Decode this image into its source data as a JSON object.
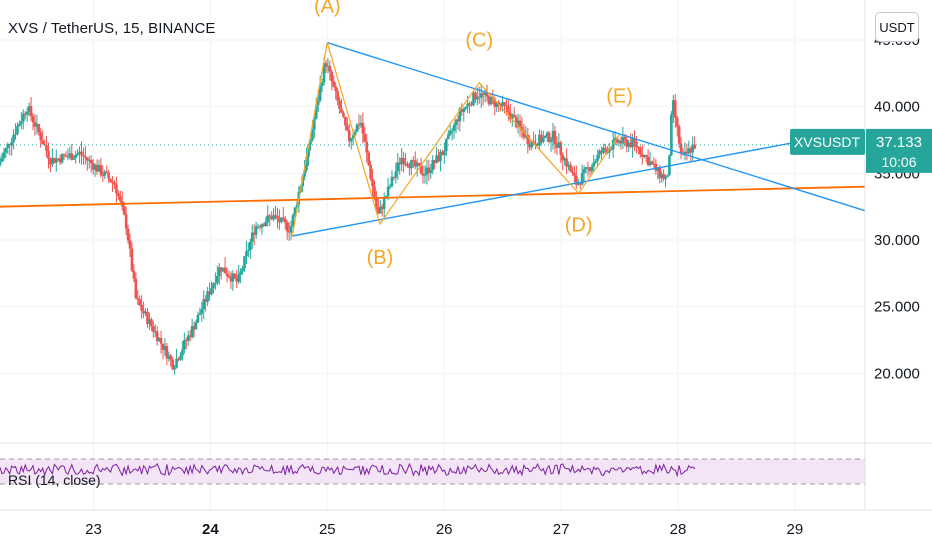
{
  "header": {
    "symbol_title": "XVS / TetherUS, 15, BINANCE",
    "currency_button": "USDT"
  },
  "price_tag": {
    "symbol": "XVSUSDT",
    "price": "37.133",
    "countdown": "10:06"
  },
  "rsi": {
    "label": "RSI (14, close)"
  },
  "colors": {
    "up_candle": "#26a69a",
    "down_candle": "#ef5350",
    "wave_lines": "#f5a623",
    "triangle_lines": "#2196f3",
    "support_line": "#ff6d00",
    "price_tag_bg": "#26a69a",
    "rsi_line": "#7b1fa2",
    "rsi_band": "#f3e5f5"
  },
  "chart_data": {
    "type": "candlestick",
    "x_tick_labels": [
      "23",
      "24",
      "25",
      "26",
      "27",
      "28",
      "29"
    ],
    "y_tick_labels": [
      "45.000",
      "40.000",
      "35.000",
      "30.000",
      "25.000",
      "20.000"
    ],
    "ylim": [
      15,
      48
    ],
    "last_price": 37.133,
    "wave_labels": [
      {
        "label": "(A)",
        "x": 25.0,
        "y": 44.8
      },
      {
        "label": "(B)",
        "x": 25.45,
        "y": 31.2
      },
      {
        "label": "(C)",
        "x": 26.3,
        "y": 41.8
      },
      {
        "label": "(D)",
        "x": 27.15,
        "y": 33.5
      },
      {
        "label": "(E)",
        "x": 27.5,
        "y": 37.9
      }
    ],
    "wave_path": [
      {
        "x": 24.7,
        "y": 30.3
      },
      {
        "x": 25.0,
        "y": 44.8
      },
      {
        "x": 25.45,
        "y": 31.2
      },
      {
        "x": 26.3,
        "y": 41.8
      },
      {
        "x": 27.15,
        "y": 33.5
      },
      {
        "x": 27.5,
        "y": 37.9
      }
    ],
    "triangle_upper": [
      {
        "x": 25.0,
        "y": 44.8
      },
      {
        "x": 29.6,
        "y": 32.2
      }
    ],
    "triangle_lower": [
      {
        "x": 24.7,
        "y": 30.3
      },
      {
        "x": 29.05,
        "y": 37.4
      }
    ],
    "support_line": [
      {
        "x": 22.2,
        "y": 32.5
      },
      {
        "x": 29.6,
        "y": 34.0
      }
    ],
    "path_keypoints": [
      {
        "x": 22.2,
        "y": 35.6
      },
      {
        "x": 22.45,
        "y": 40.0
      },
      {
        "x": 22.65,
        "y": 36.0
      },
      {
        "x": 22.9,
        "y": 36.5
      },
      {
        "x": 23.2,
        "y": 34.2
      },
      {
        "x": 23.3,
        "y": 31.0
      },
      {
        "x": 23.38,
        "y": 25.5
      },
      {
        "x": 23.55,
        "y": 23.0
      },
      {
        "x": 23.7,
        "y": 20.6
      },
      {
        "x": 23.9,
        "y": 24.0
      },
      {
        "x": 24.1,
        "y": 28.0
      },
      {
        "x": 24.25,
        "y": 26.8
      },
      {
        "x": 24.4,
        "y": 31.0
      },
      {
        "x": 24.55,
        "y": 31.8
      },
      {
        "x": 24.7,
        "y": 30.8
      },
      {
        "x": 24.85,
        "y": 36.5
      },
      {
        "x": 25.0,
        "y": 43.5
      },
      {
        "x": 25.2,
        "y": 37.5
      },
      {
        "x": 25.3,
        "y": 39.0
      },
      {
        "x": 25.45,
        "y": 31.8
      },
      {
        "x": 25.65,
        "y": 36.2
      },
      {
        "x": 25.85,
        "y": 35.0
      },
      {
        "x": 26.0,
        "y": 36.5
      },
      {
        "x": 26.15,
        "y": 39.5
      },
      {
        "x": 26.3,
        "y": 41.0
      },
      {
        "x": 26.55,
        "y": 39.8
      },
      {
        "x": 26.75,
        "y": 37.3
      },
      {
        "x": 26.95,
        "y": 37.8
      },
      {
        "x": 27.15,
        "y": 34.2
      },
      {
        "x": 27.35,
        "y": 36.5
      },
      {
        "x": 27.5,
        "y": 37.4
      },
      {
        "x": 27.65,
        "y": 37.2
      },
      {
        "x": 27.85,
        "y": 35.0
      },
      {
        "x": 27.93,
        "y": 34.5
      },
      {
        "x": 27.97,
        "y": 40.5
      },
      {
        "x": 28.05,
        "y": 36.0
      },
      {
        "x": 28.15,
        "y": 37.1
      }
    ],
    "rsi_levels": [
      70,
      30
    ],
    "grid": true,
    "price_axis_position": "right",
    "time_axis_position": "bottom"
  }
}
